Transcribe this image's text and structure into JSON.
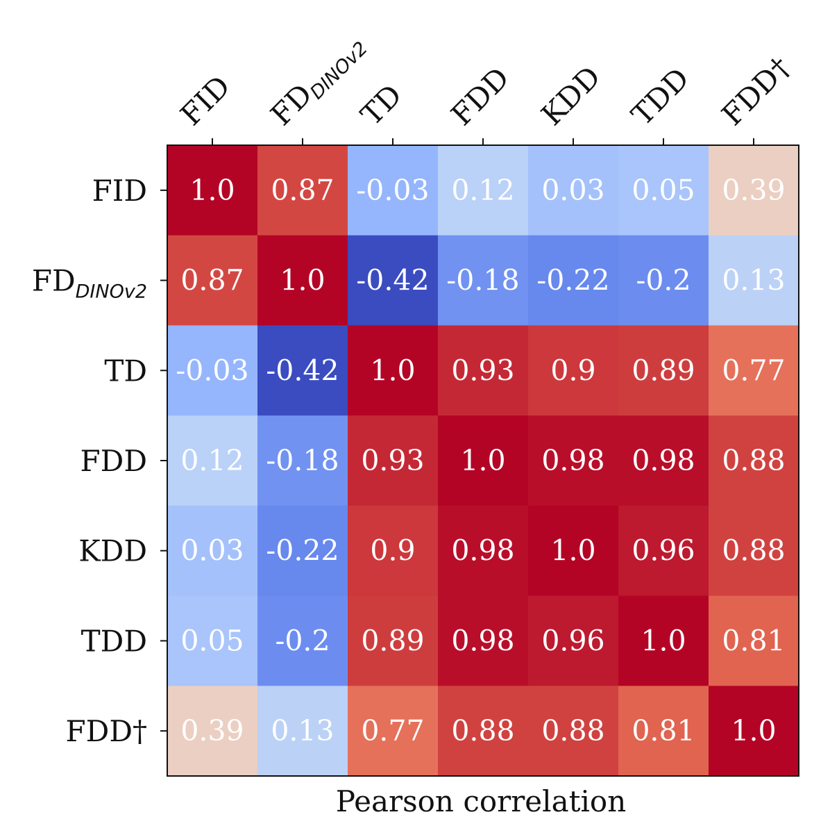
{
  "chart_data": {
    "type": "heatmap",
    "title": "",
    "xlabel": "Pearson correlation",
    "ylabel": "",
    "labels": [
      {
        "main": "FID",
        "sub": ""
      },
      {
        "main": "FD",
        "sub": "DINOv2"
      },
      {
        "main": "TD",
        "sub": ""
      },
      {
        "main": "FDD",
        "sub": ""
      },
      {
        "main": "KDD",
        "sub": ""
      },
      {
        "main": "TDD",
        "sub": ""
      },
      {
        "main": "FDD†",
        "sub": ""
      }
    ],
    "matrix": [
      [
        1.0,
        0.87,
        -0.03,
        0.12,
        0.03,
        0.05,
        0.39
      ],
      [
        0.87,
        1.0,
        -0.42,
        -0.18,
        -0.22,
        -0.2,
        0.13
      ],
      [
        -0.03,
        -0.42,
        1.0,
        0.93,
        0.9,
        0.89,
        0.77
      ],
      [
        0.12,
        -0.18,
        0.93,
        1.0,
        0.98,
        0.98,
        0.88
      ],
      [
        0.03,
        -0.22,
        0.9,
        0.98,
        1.0,
        0.96,
        0.88
      ],
      [
        0.05,
        -0.2,
        0.89,
        0.98,
        0.96,
        1.0,
        0.81
      ],
      [
        0.39,
        0.13,
        0.77,
        0.88,
        0.88,
        0.81,
        1.0
      ]
    ],
    "colormap": "coolwarm",
    "color_range": [
      -0.42,
      1.0
    ],
    "x_axis_position": "top",
    "grid": false,
    "legend": "none"
  }
}
